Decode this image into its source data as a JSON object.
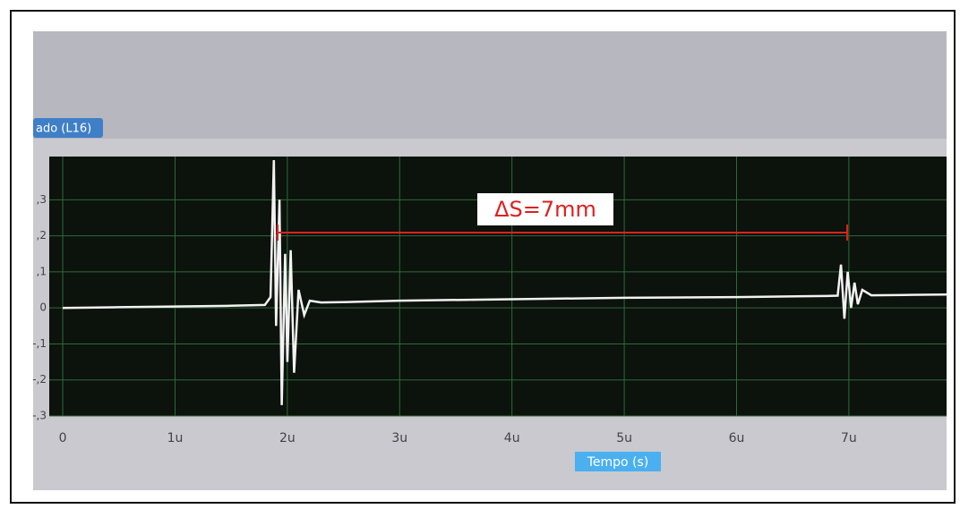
{
  "chart_data": {
    "type": "line",
    "channel_label": "ado (L16)",
    "x_label": "Tempo (s)",
    "annotation": "ΔS=7mm",
    "xlim": [
      -0.12,
      7.87
    ],
    "xticks": [
      0,
      {
        "value": 1,
        "label": "1u"
      },
      {
        "value": 2,
        "label": "2u"
      },
      {
        "value": 3,
        "label": "3u"
      },
      {
        "value": 4,
        "label": "4u"
      },
      {
        "value": 5,
        "label": "5u"
      },
      {
        "value": 6,
        "label": "6u"
      },
      {
        "value": 7,
        "label": "7u"
      }
    ],
    "ylim": [
      -0.3,
      0.42
    ],
    "yticks": [
      {
        "value": -0.3,
        "label": "-,3"
      },
      {
        "value": -0.2,
        "label": "-,2"
      },
      {
        "value": -0.1,
        "label": "-,1"
      },
      0,
      {
        "value": 0.1,
        "label": ",1"
      },
      {
        "value": 0.2,
        "label": ",2"
      },
      {
        "value": 0.3,
        "label": ",3"
      }
    ],
    "grid": true,
    "series": [
      {
        "color": "#f2f2f2",
        "x": [
          0,
          0.5,
          1,
          1.5,
          1.8,
          1.85,
          1.88,
          1.9,
          1.93,
          1.95,
          1.98,
          2.0,
          2.03,
          2.06,
          2.1,
          2.15,
          2.2,
          2.3,
          2.5,
          3,
          4,
          5,
          6,
          6.8,
          6.9,
          6.93,
          6.96,
          6.99,
          7.02,
          7.05,
          7.08,
          7.12,
          7.2,
          7.5,
          7.87
        ],
        "values": [
          0,
          0.002,
          0.004,
          0.006,
          0.008,
          0.03,
          0.41,
          -0.05,
          0.3,
          -0.27,
          0.15,
          -0.15,
          0.16,
          -0.18,
          0.05,
          -0.02,
          0.02,
          0.015,
          0.016,
          0.02,
          0.024,
          0.028,
          0.03,
          0.033,
          0.034,
          0.12,
          -0.03,
          0.1,
          0.0,
          0.07,
          0.01,
          0.05,
          0.035,
          0.036,
          0.037
        ]
      }
    ]
  }
}
